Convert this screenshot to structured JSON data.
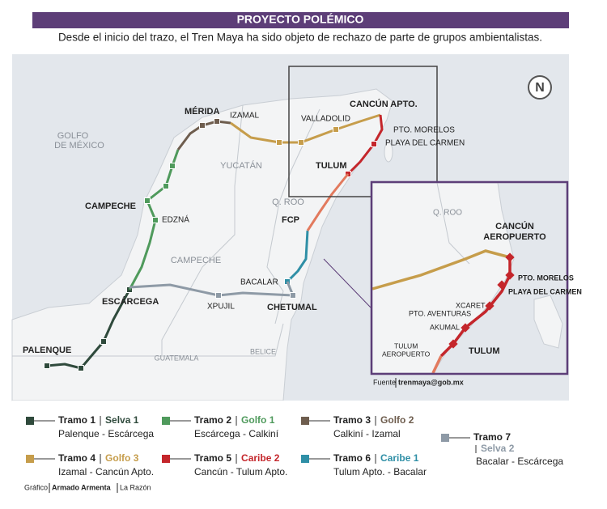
{
  "header": {
    "title": "PROYECTO POLÉMICO",
    "subtitle": "Desde el inicio del trazo, el Tren Maya ha sido objeto de rechazo de parte de grupos ambientalistas."
  },
  "map": {
    "compass": "N",
    "regions": {
      "gulf": [
        "GOLFO",
        "DE MÉXICO"
      ],
      "yucatan": "YUCATÁN",
      "campeche": "CAMPECHE",
      "qroo": "Q. ROO",
      "guatemala": "GUATEMALA",
      "belice": "BELICE"
    },
    "cities": {
      "merida": "MÉRIDA",
      "izamal": "IZAMAL",
      "valladolid": "VALLADOLID",
      "cancun": "CANCÚN APTO.",
      "morelos": "PTO. MORELOS",
      "playa": "PLAYA DEL CARMEN",
      "tulum": "TULUM",
      "fcp": "FCP",
      "bacalar": "BACALAR",
      "chetumal": "CHETUMAL",
      "xpujil": "XPUJIL",
      "escarcega": "ESCÁRCEGA",
      "campeche": "CAMPECHE",
      "edzna": "EDZNÁ",
      "palenque": "PALENQUE"
    },
    "inset": {
      "qroo": "Q. ROO",
      "cancun": [
        "CANCÚN",
        "AEROPUERTO"
      ],
      "morelos": "PTO. MORELOS",
      "playa": "PLAYA DEL CARMEN",
      "xcaret": "XCARET",
      "aventuras": "PTO. AVENTURAS",
      "akumal": "AKUMAL",
      "tulum": "TULUM",
      "tulum_apto": [
        "TULUM",
        "AEROPUERTO"
      ]
    },
    "source": {
      "label": "Fuente",
      "value": "trenmaya@gob.mx"
    }
  },
  "legend": [
    {
      "name": "Tramo 1",
      "tag": "Selva 1",
      "route": "Palenque - Escárcega",
      "color": "#2f4a3c"
    },
    {
      "name": "Tramo 2",
      "tag": "Golfo 1",
      "route": "Escárcega - Calkiní",
      "color": "#4f9a5c"
    },
    {
      "name": "Tramo 3",
      "tag": "Golfo 2",
      "route": "Calkiní - Izamal",
      "color": "#6e5d4e"
    },
    {
      "name": "Tramo 4",
      "tag": "Golfo 3",
      "route": "Izamal - Cancún Apto.",
      "color": "#c69d4b"
    },
    {
      "name": "Tramo 5",
      "tag": "Caribe 2",
      "route": "Cancún - Tulum Apto.",
      "color": "#c4262b"
    },
    {
      "name": "Tramo 6",
      "tag": "Caribe 1",
      "route": "Tulum Apto. - Bacalar",
      "color": "#2f8fa6"
    },
    {
      "name": "Tramo 7",
      "tag": "Selva 2",
      "route": "Bacalar - Escárcega",
      "color": "#8e9aa6"
    }
  ],
  "credit": {
    "label": "Gráfico",
    "author": "Armado Armenta",
    "outlet": "La Razón"
  }
}
